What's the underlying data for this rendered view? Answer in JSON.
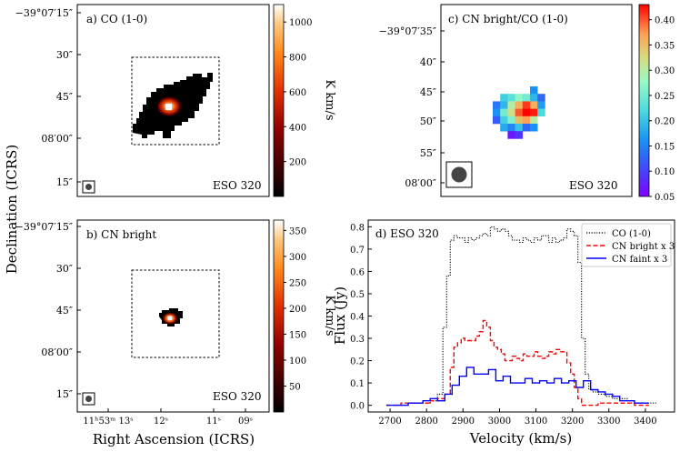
{
  "figure": {
    "shared_xlabel": "Right Ascension (ICRS)",
    "shared_ylabel": "Declination (ICRS)"
  },
  "chart_data": [
    {
      "type": "heatmap",
      "panel": "a",
      "title": "a) CO (1-0)",
      "source": "ESO 320",
      "ylabel": "Declination (ICRS)",
      "ytick_labels": [
        "−39°07′15″",
        "30″",
        "45″",
        "08′00″",
        "15″"
      ],
      "colorbar": {
        "label": "K km/s",
        "colormap": "gist_heat",
        "range": [
          0,
          1100
        ],
        "ticks": [
          200,
          400,
          600,
          800,
          1000
        ],
        "tick_labels": [
          "200",
          "400",
          "600",
          "800",
          "1000"
        ]
      },
      "peak_value": 1050
    },
    {
      "type": "heatmap",
      "panel": "b",
      "title": "b) CN bright",
      "source": "ESO 320",
      "xlabel": "Right Ascension (ICRS)",
      "ylabel": "Declination (ICRS)",
      "ytick_labels": [
        "−39°07′15″",
        "30″",
        "45″",
        "08′00″",
        "15″"
      ],
      "xtick_labels": [
        "11ʰ53ᵐ 13ˢ",
        "12ˢ",
        "11ˢ",
        "09ˢ"
      ],
      "colorbar": {
        "label": "K km/s",
        "colormap": "gist_heat",
        "range": [
          0,
          370
        ],
        "ticks": [
          50,
          100,
          150,
          200,
          250,
          300,
          350
        ],
        "tick_labels": [
          "50",
          "100",
          "150",
          "200",
          "250",
          "300",
          "350"
        ]
      },
      "peak_value": 355
    },
    {
      "type": "heatmap",
      "panel": "c",
      "title": "c) CN bright/CO (1-0)",
      "source": "ESO 320",
      "ytick_labels": [
        "−39°07′35″",
        "40″",
        "45″",
        "50″",
        "55″",
        "08′00″"
      ],
      "colorbar": {
        "label": "",
        "colormap": "rainbow",
        "range": [
          0.05,
          0.43
        ],
        "ticks": [
          0.05,
          0.1,
          0.15,
          0.2,
          0.25,
          0.3,
          0.35,
          0.4
        ],
        "tick_labels": [
          "0.05",
          "0.10",
          "0.15",
          "0.20",
          "0.25",
          "0.30",
          "0.35",
          "0.40"
        ]
      },
      "pixels": [
        {
          "col": 5,
          "row": 0,
          "v": 0.16
        },
        {
          "col": 1,
          "row": 1,
          "v": 0.21
        },
        {
          "col": 2,
          "row": 1,
          "v": 0.23
        },
        {
          "col": 3,
          "row": 1,
          "v": 0.27
        },
        {
          "col": 4,
          "row": 1,
          "v": 0.25
        },
        {
          "col": 5,
          "row": 1,
          "v": 0.19
        },
        {
          "col": 6,
          "row": 1,
          "v": 0.13
        },
        {
          "col": 0,
          "row": 2,
          "v": 0.14
        },
        {
          "col": 1,
          "row": 2,
          "v": 0.19
        },
        {
          "col": 2,
          "row": 2,
          "v": 0.3
        },
        {
          "col": 3,
          "row": 2,
          "v": 0.36
        },
        {
          "col": 4,
          "row": 2,
          "v": 0.41
        },
        {
          "col": 5,
          "row": 2,
          "v": 0.36
        },
        {
          "col": 6,
          "row": 2,
          "v": 0.17
        },
        {
          "col": 0,
          "row": 3,
          "v": 0.16
        },
        {
          "col": 1,
          "row": 3,
          "v": 0.25
        },
        {
          "col": 2,
          "row": 3,
          "v": 0.32
        },
        {
          "col": 3,
          "row": 3,
          "v": 0.4
        },
        {
          "col": 4,
          "row": 3,
          "v": 0.43
        },
        {
          "col": 5,
          "row": 3,
          "v": 0.42
        },
        {
          "col": 6,
          "row": 3,
          "v": 0.22
        },
        {
          "col": 0,
          "row": 4,
          "v": 0.12
        },
        {
          "col": 1,
          "row": 4,
          "v": 0.21
        },
        {
          "col": 2,
          "row": 4,
          "v": 0.26
        },
        {
          "col": 3,
          "row": 4,
          "v": 0.35
        },
        {
          "col": 4,
          "row": 4,
          "v": 0.37
        },
        {
          "col": 5,
          "row": 4,
          "v": 0.3
        },
        {
          "col": 1,
          "row": 5,
          "v": 0.18
        },
        {
          "col": 2,
          "row": 5,
          "v": 0.15
        },
        {
          "col": 3,
          "row": 5,
          "v": 0.2
        },
        {
          "col": 4,
          "row": 5,
          "v": 0.13
        },
        {
          "col": 5,
          "row": 5,
          "v": 0.16
        },
        {
          "col": 2,
          "row": 6,
          "v": 0.07
        },
        {
          "col": 3,
          "row": 6,
          "v": 0.09
        }
      ]
    },
    {
      "type": "line",
      "panel": "d",
      "title": "d) ESO 320",
      "xlabel": "Velocity (km/s)",
      "ylabel": "Flux (Jy)",
      "xlim": [
        2640,
        3480
      ],
      "ylim": [
        -0.03,
        0.83
      ],
      "xticks": [
        2700,
        2800,
        2900,
        3000,
        3100,
        3200,
        3300,
        3400
      ],
      "xtick_labels": [
        "2700",
        "2800",
        "2900",
        "3000",
        "3100",
        "3200",
        "3300",
        "3400"
      ],
      "yticks": [
        0.0,
        0.1,
        0.2,
        0.3,
        0.4,
        0.5,
        0.6,
        0.7,
        0.8
      ],
      "ytick_labels": [
        "0.0",
        "0.1",
        "0.2",
        "0.3",
        "0.4",
        "0.5",
        "0.6",
        "0.7",
        "0.8"
      ],
      "legend_position": "top-right",
      "series": [
        {
          "name": "CO (1-0)",
          "style": "dotted",
          "color": "#000000",
          "x": [
            2700,
            2720,
            2740,
            2760,
            2780,
            2800,
            2820,
            2840,
            2850,
            2860,
            2870,
            2880,
            2890,
            2900,
            2910,
            2920,
            2930,
            2940,
            2950,
            2960,
            2970,
            2980,
            2990,
            3000,
            3010,
            3020,
            3030,
            3040,
            3050,
            3060,
            3070,
            3080,
            3090,
            3100,
            3110,
            3120,
            3130,
            3140,
            3150,
            3160,
            3170,
            3180,
            3190,
            3200,
            3210,
            3220,
            3230,
            3240,
            3250,
            3260,
            3280,
            3300,
            3320,
            3340,
            3360,
            3380,
            3400,
            3420
          ],
          "y": [
            0.0,
            0.0,
            0.0,
            0.01,
            0.01,
            0.01,
            0.02,
            0.05,
            0.35,
            0.58,
            0.74,
            0.76,
            0.75,
            0.75,
            0.73,
            0.75,
            0.74,
            0.75,
            0.76,
            0.77,
            0.76,
            0.8,
            0.79,
            0.78,
            0.79,
            0.78,
            0.76,
            0.74,
            0.74,
            0.73,
            0.75,
            0.74,
            0.73,
            0.75,
            0.74,
            0.76,
            0.76,
            0.73,
            0.75,
            0.73,
            0.74,
            0.75,
            0.79,
            0.78,
            0.76,
            0.64,
            0.3,
            0.14,
            0.07,
            0.06,
            0.05,
            0.04,
            0.03,
            0.03,
            0.02,
            0.01,
            0.01,
            0.01
          ]
        },
        {
          "name": "CN bright x 3",
          "style": "dashed",
          "color": "#ff0000",
          "x": [
            2700,
            2720,
            2740,
            2760,
            2780,
            2800,
            2820,
            2840,
            2860,
            2870,
            2880,
            2890,
            2900,
            2910,
            2920,
            2930,
            2940,
            2950,
            2960,
            2970,
            2980,
            2990,
            3000,
            3010,
            3020,
            3030,
            3040,
            3050,
            3060,
            3070,
            3080,
            3090,
            3100,
            3110,
            3120,
            3130,
            3140,
            3150,
            3160,
            3170,
            3180,
            3190,
            3200,
            3210,
            3220,
            3230,
            3240,
            3260,
            3280,
            3300,
            3320,
            3340,
            3360,
            3380,
            3400
          ],
          "y": [
            0.0,
            0.0,
            0.01,
            0.01,
            0.01,
            0.01,
            0.02,
            0.03,
            0.05,
            0.17,
            0.26,
            0.28,
            0.3,
            0.29,
            0.29,
            0.29,
            0.31,
            0.33,
            0.38,
            0.35,
            0.29,
            0.26,
            0.25,
            0.23,
            0.2,
            0.2,
            0.22,
            0.21,
            0.2,
            0.23,
            0.22,
            0.22,
            0.24,
            0.22,
            0.21,
            0.22,
            0.24,
            0.23,
            0.25,
            0.24,
            0.24,
            0.19,
            0.14,
            0.08,
            0.03,
            0.0,
            0.0,
            0.0,
            0.01,
            0.01,
            0.01,
            0.01,
            0.01,
            0.0,
            0.0
          ]
        },
        {
          "name": "CN faint x 3",
          "style": "solid",
          "color": "#0000ff",
          "x": [
            2700,
            2720,
            2740,
            2760,
            2780,
            2800,
            2820,
            2840,
            2860,
            2880,
            2900,
            2920,
            2940,
            2960,
            2980,
            3000,
            3020,
            3040,
            3060,
            3080,
            3100,
            3120,
            3140,
            3160,
            3180,
            3200,
            3220,
            3240,
            3260,
            3280,
            3300,
            3320,
            3340,
            3360,
            3380,
            3400
          ],
          "y": [
            0.0,
            0.0,
            0.0,
            0.01,
            0.01,
            0.02,
            0.03,
            0.02,
            0.05,
            0.09,
            0.13,
            0.17,
            0.14,
            0.14,
            0.16,
            0.11,
            0.13,
            0.1,
            0.1,
            0.12,
            0.1,
            0.11,
            0.1,
            0.12,
            0.1,
            0.11,
            0.08,
            0.11,
            0.07,
            0.06,
            0.05,
            0.04,
            0.02,
            0.02,
            0.01,
            0.01
          ]
        }
      ]
    }
  ]
}
